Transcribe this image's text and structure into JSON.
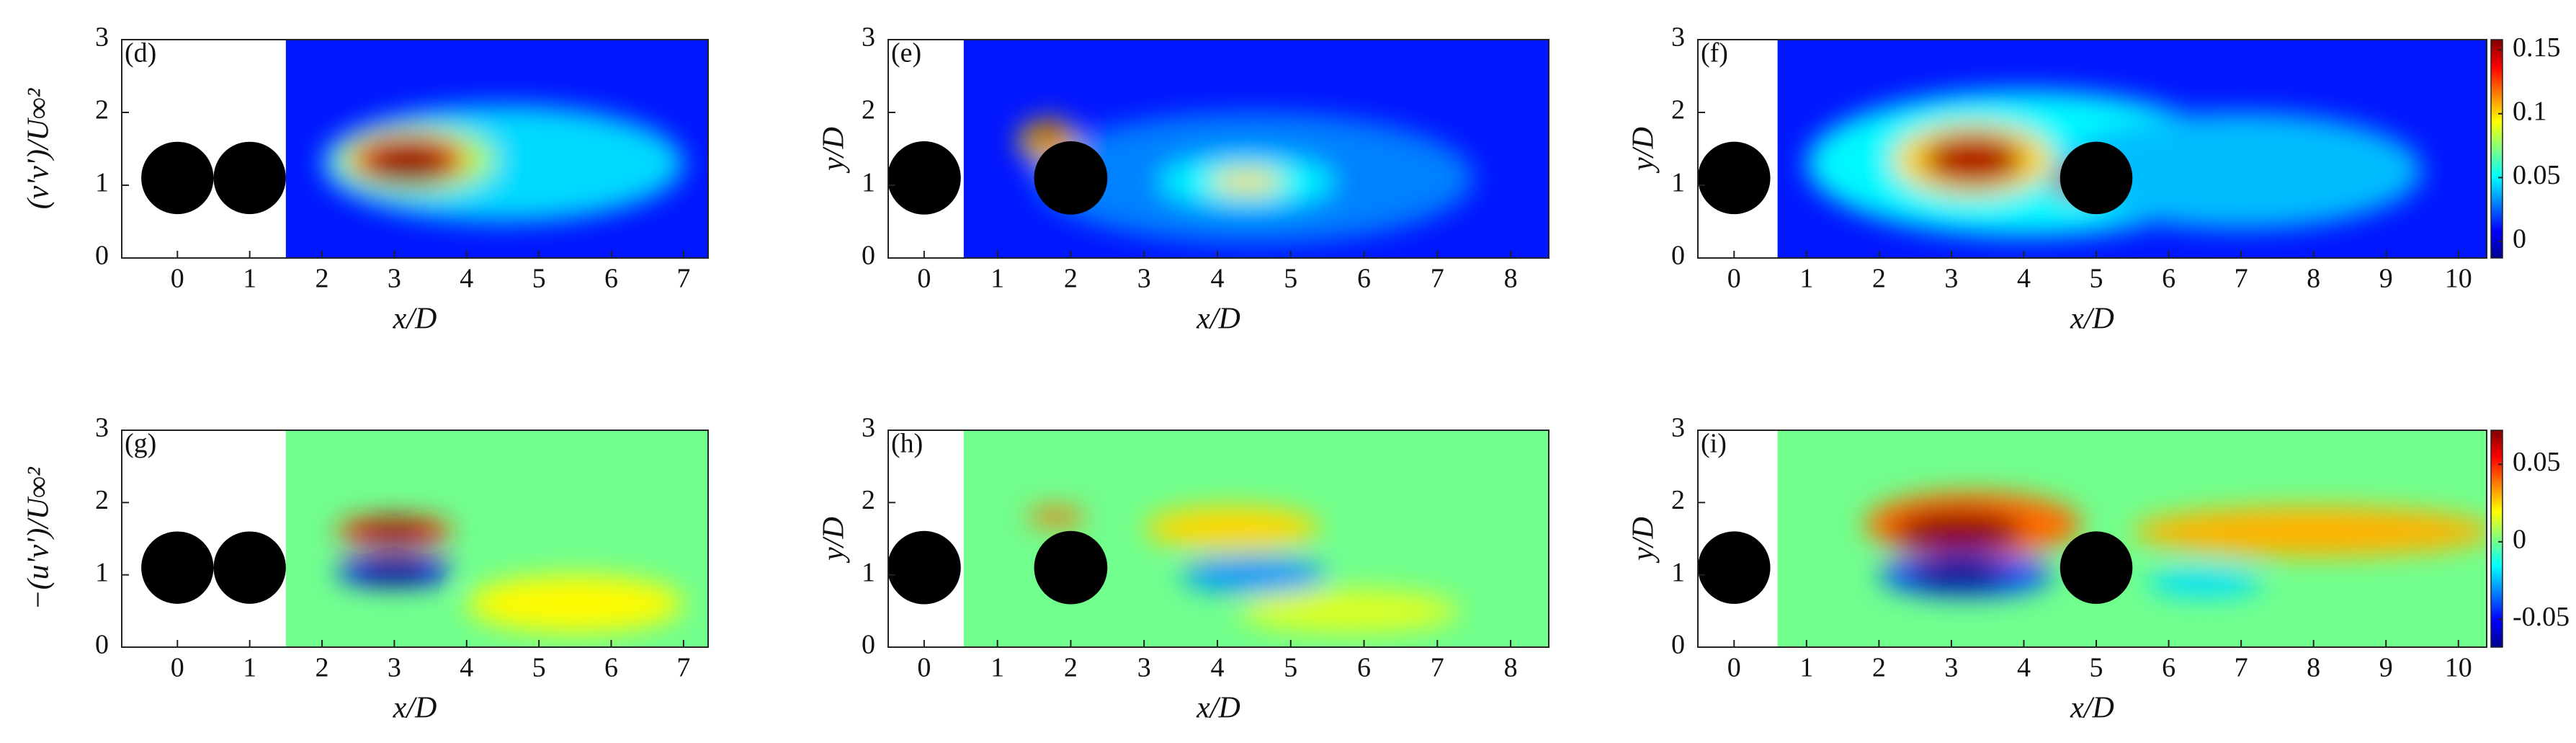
{
  "chart_data": [
    {
      "type": "heatmap",
      "panel": "(d)",
      "xlabel": "x/D",
      "ylabel": "(v'v')/U∞²",
      "xlim": [
        -0.77,
        7.34
      ],
      "xticks": [
        0,
        1,
        2,
        3,
        4,
        5,
        6,
        7
      ],
      "ylim": [
        0,
        3
      ],
      "yticks": [
        0,
        1,
        2,
        3
      ],
      "field_start": 1.5,
      "cylinder_diameter": 1,
      "cylinders": [
        {
          "x": 0,
          "y": 1.1
        },
        {
          "x": 1,
          "y": 1.1
        }
      ],
      "clim": [
        -0.013,
        0.158
      ],
      "background_level": 0.012,
      "hotspots": [
        {
          "x": 4.5,
          "y": 1.3,
          "rx": 2.5,
          "ry": 0.8,
          "level": 0.045
        },
        {
          "x": 3.3,
          "y": 1.35,
          "rx": 1.1,
          "ry": 0.45,
          "level": 0.08
        },
        {
          "x": 3.2,
          "y": 1.35,
          "rx": 0.8,
          "ry": 0.35,
          "level": 0.13
        },
        {
          "x": 3.2,
          "y": 1.3,
          "rx": 0.6,
          "ry": 0.28,
          "level": 0.155
        }
      ]
    },
    {
      "type": "heatmap",
      "panel": "(e)",
      "xlabel": "x/D",
      "ylabel": "y/D",
      "xlim": [
        -0.49,
        8.52
      ],
      "xticks": [
        0,
        1,
        2,
        3,
        4,
        5,
        6,
        7,
        8
      ],
      "ylim": [
        0,
        3
      ],
      "yticks": [
        0,
        1,
        2,
        3
      ],
      "field_start": 0.54,
      "cylinder_diameter": 1,
      "cylinders": [
        {
          "x": 0,
          "y": 1.1
        },
        {
          "x": 2,
          "y": 1.1
        }
      ],
      "clim": [
        -0.013,
        0.158
      ],
      "background_level": 0.012,
      "hotspots": [
        {
          "x": 4.5,
          "y": 1.1,
          "rx": 3,
          "ry": 0.9,
          "level": 0.03
        },
        {
          "x": 1.7,
          "y": 1.6,
          "rx": 0.4,
          "ry": 0.3,
          "level": 0.1
        },
        {
          "x": 1.7,
          "y": 1.65,
          "rx": 0.25,
          "ry": 0.18,
          "level": 0.15
        },
        {
          "x": 4.4,
          "y": 1.05,
          "rx": 1.2,
          "ry": 0.35,
          "level": 0.05
        },
        {
          "x": 4.4,
          "y": 1.05,
          "rx": 0.5,
          "ry": 0.15,
          "level": 0.1
        }
      ]
    },
    {
      "type": "heatmap",
      "panel": "(f)",
      "xlabel": "x/D",
      "ylabel": "y/D",
      "xlim": [
        -0.5,
        10.39
      ],
      "xticks": [
        0,
        1,
        2,
        3,
        4,
        5,
        6,
        7,
        8,
        9,
        10
      ],
      "ylim": [
        0,
        3
      ],
      "yticks": [
        0,
        1,
        2,
        3
      ],
      "field_start": 0.6,
      "cylinder_diameter": 1,
      "cylinders": [
        {
          "x": 0,
          "y": 1.1
        },
        {
          "x": 5,
          "y": 1.1
        }
      ],
      "clim": [
        -0.013,
        0.158
      ],
      "colorbar_ticks": [
        0,
        0.05,
        0.1,
        0.15
      ],
      "background_level": 0.012,
      "hotspots": [
        {
          "x": 4,
          "y": 1.3,
          "rx": 3,
          "ry": 1,
          "level": 0.05
        },
        {
          "x": 7,
          "y": 1.2,
          "rx": 2.5,
          "ry": 0.8,
          "level": 0.04
        },
        {
          "x": 3.3,
          "y": 1.35,
          "rx": 1.1,
          "ry": 0.5,
          "level": 0.1
        },
        {
          "x": 3.3,
          "y": 1.35,
          "rx": 0.7,
          "ry": 0.35,
          "level": 0.15
        },
        {
          "x": 4.7,
          "y": 1.05,
          "rx": 0.3,
          "ry": 0.2,
          "level": 0.15
        }
      ]
    },
    {
      "type": "heatmap",
      "panel": "(g)",
      "xlabel": "x/D",
      "ylabel": "−(u'v')/U∞²",
      "xlim": [
        -0.77,
        7.34
      ],
      "xticks": [
        0,
        1,
        2,
        3,
        4,
        5,
        6,
        7
      ],
      "ylim": [
        0,
        3
      ],
      "yticks": [
        0,
        1,
        2,
        3
      ],
      "field_start": 1.5,
      "cylinder_diameter": 1,
      "cylinders": [
        {
          "x": 0,
          "y": 1.1
        },
        {
          "x": 1,
          "y": 1.1
        }
      ],
      "clim": [
        -0.068,
        0.072
      ],
      "background_level": 0,
      "hotspots": [
        {
          "x": 5.5,
          "y": 0.6,
          "rx": 1.5,
          "ry": 0.4,
          "level": 0.02
        },
        {
          "x": 3,
          "y": 1.6,
          "rx": 0.8,
          "ry": 0.2,
          "level": 0.05
        },
        {
          "x": 3,
          "y": 1.6,
          "rx": 0.5,
          "ry": 0.15,
          "level": 0.07
        },
        {
          "x": 3,
          "y": 1.05,
          "rx": 0.8,
          "ry": 0.2,
          "level": -0.05
        },
        {
          "x": 3,
          "y": 1.05,
          "rx": 0.5,
          "ry": 0.15,
          "level": -0.068
        }
      ]
    },
    {
      "type": "heatmap",
      "panel": "(h)",
      "xlabel": "x/D",
      "ylabel": "y/D",
      "xlim": [
        -0.49,
        8.52
      ],
      "xticks": [
        0,
        1,
        2,
        3,
        4,
        5,
        6,
        7,
        8
      ],
      "ylim": [
        0,
        3
      ],
      "yticks": [
        0,
        1,
        2,
        3
      ],
      "field_start": 0.54,
      "cylinder_diameter": 1,
      "cylinders": [
        {
          "x": 0,
          "y": 1.1
        },
        {
          "x": 2,
          "y": 1.1
        }
      ],
      "clim": [
        -0.068,
        0.072
      ],
      "background_level": 0,
      "hotspots": [
        {
          "x": 5.8,
          "y": 0.5,
          "rx": 1.5,
          "ry": 0.3,
          "level": 0.015
        },
        {
          "x": 1.8,
          "y": 1.8,
          "rx": 0.4,
          "ry": 0.12,
          "level": 0.04
        },
        {
          "x": 4.2,
          "y": 1.65,
          "rx": 1.2,
          "ry": 0.3,
          "level": 0.025
        },
        {
          "x": 4.5,
          "y": 1.0,
          "rx": 1.0,
          "ry": 0.25,
          "level": -0.03
        }
      ]
    },
    {
      "type": "heatmap",
      "panel": "(i)",
      "xlabel": "x/D",
      "ylabel": "y/D",
      "xlim": [
        -0.5,
        10.39
      ],
      "xticks": [
        0,
        1,
        2,
        3,
        4,
        5,
        6,
        7,
        8,
        9,
        10
      ],
      "ylim": [
        0,
        3
      ],
      "yticks": [
        0,
        1,
        2,
        3
      ],
      "field_start": 0.6,
      "cylinder_diameter": 1,
      "cylinders": [
        {
          "x": 0,
          "y": 1.1
        },
        {
          "x": 5,
          "y": 1.1
        }
      ],
      "clim": [
        -0.068,
        0.072
      ],
      "colorbar_ticks": [
        0.05,
        0,
        -0.05
      ],
      "background_level": 0,
      "hotspots": [
        {
          "x": 8,
          "y": 1.6,
          "rx": 2.5,
          "ry": 0.35,
          "level": 0.03
        },
        {
          "x": 6.5,
          "y": 0.9,
          "rx": 0.8,
          "ry": 0.2,
          "level": -0.02
        },
        {
          "x": 3.3,
          "y": 1.7,
          "rx": 1.5,
          "ry": 0.45,
          "level": 0.04
        },
        {
          "x": 3.1,
          "y": 1.6,
          "rx": 0.9,
          "ry": 0.3,
          "level": 0.07
        },
        {
          "x": 3.2,
          "y": 1.0,
          "rx": 1.2,
          "ry": 0.3,
          "level": -0.04
        },
        {
          "x": 3.1,
          "y": 1.0,
          "rx": 0.7,
          "ry": 0.2,
          "level": -0.068
        }
      ]
    }
  ]
}
